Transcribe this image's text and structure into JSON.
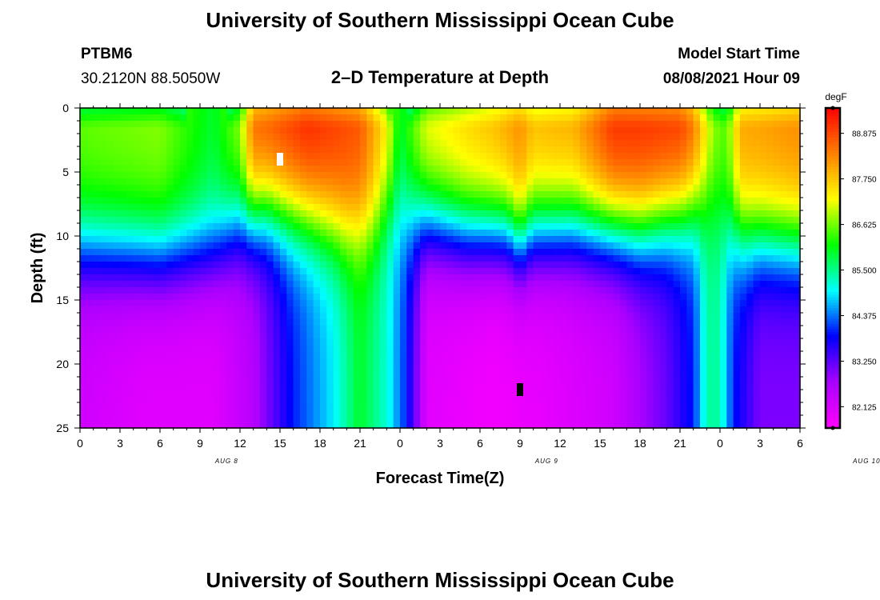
{
  "header": {
    "title": "University of Southern Mississippi Ocean Cube",
    "station": "PTBM6",
    "coords": "30.2120N  88.5050W",
    "subtitle": "2–D Temperature at Depth",
    "model_label": "Model Start Time",
    "model_time": "08/08/2021 Hour 09"
  },
  "footer": {
    "title": "University of Southern Mississippi Ocean Cube"
  },
  "chart_data": {
    "type": "heatmap",
    "xlabel": "Forecast Time(Z)",
    "ylabel": "Depth (ft)",
    "x_ticks": [
      "0",
      "3",
      "6",
      "9",
      "12",
      "15",
      "18",
      "21",
      "0",
      "3",
      "6",
      "9",
      "12",
      "15",
      "18",
      "21",
      "0",
      "3",
      "6"
    ],
    "date_labels": [
      {
        "label": "AUG 8",
        "hours": 11
      },
      {
        "label": "AUG 9",
        "hours": 35
      },
      {
        "label": "AUG 10",
        "hours": 59
      }
    ],
    "x_range_hours": [
      0,
      54
    ],
    "y_ticks": [
      0,
      5,
      10,
      15,
      20,
      25
    ],
    "ylim": [
      0,
      25
    ],
    "colorbar": {
      "unit": "degF",
      "ticks": [
        "88.875",
        "87.750",
        "86.625",
        "85.500",
        "84.375",
        "83.250",
        "82.125"
      ],
      "range": [
        81.6,
        89.5
      ],
      "colors": [
        "#ff00ff",
        "#aa00ff",
        "#0000ff",
        "#00ffff",
        "#00ff00",
        "#ffff00",
        "#ff8000",
        "#ff0000"
      ]
    },
    "markers": [
      {
        "hours": 15,
        "depth": 4,
        "color": "#ffffff"
      },
      {
        "hours": 33,
        "depth": 22,
        "color": "#000000"
      }
    ]
  }
}
